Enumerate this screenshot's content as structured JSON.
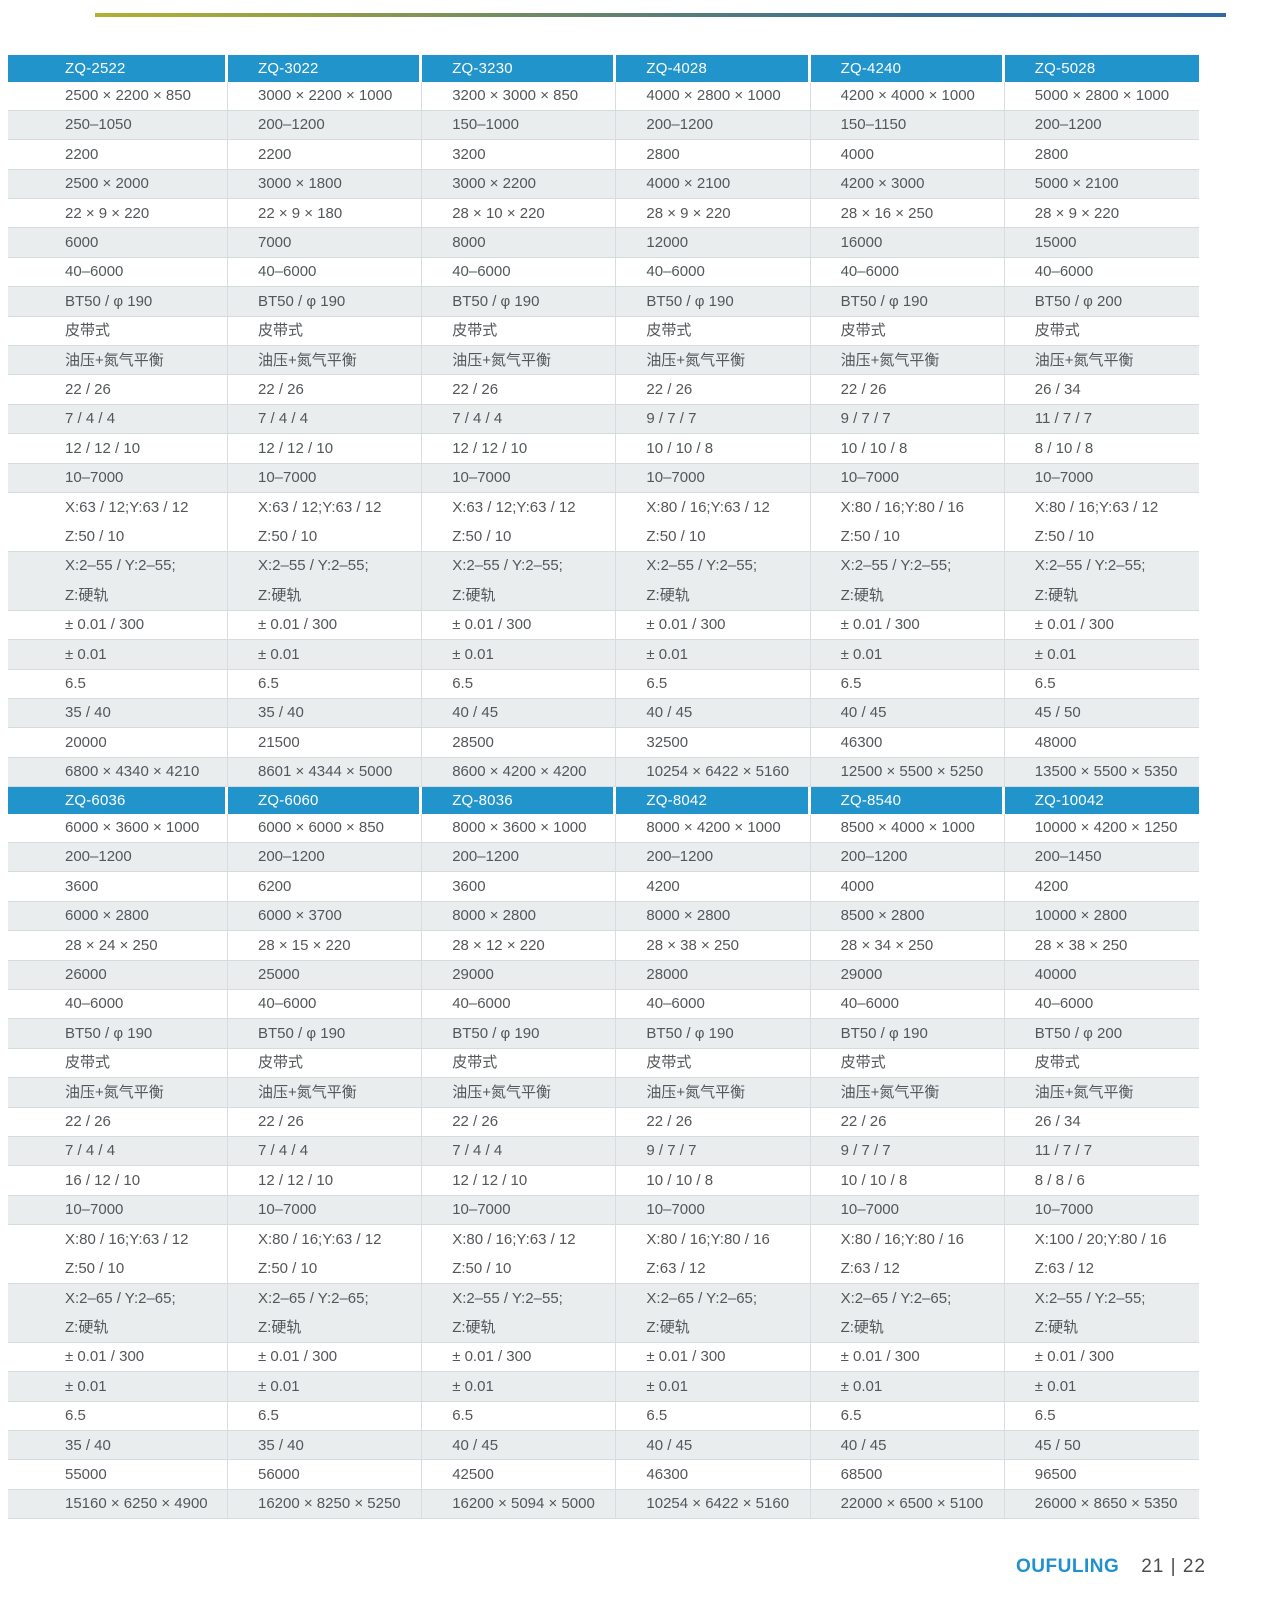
{
  "footer": {
    "brand": "OUFULING",
    "pages": "21 | 22"
  },
  "table": {
    "sections": [
      {
        "columns": [
          {
            "model": "ZQ-2522",
            "values": [
              "2500 × 2200 × 850",
              "250–1050",
              "2200",
              "2500 × 2000",
              "22 × 9 × 220",
              "6000",
              "40–6000",
              "BT50 / φ 190",
              "皮带式",
              "油压+氮气平衡",
              "22 / 26",
              "7 / 4 / 4",
              "12 / 12 / 10",
              "10–7000",
              "X:63 / 12;Y:63 / 12\nZ:50 / 10",
              "X:2–55 / Y:2–55;\nZ:硬轨",
              "± 0.01 / 300",
              "± 0.01",
              "6.5",
              "35 / 40",
              "20000",
              "6800 × 4340 × 4210"
            ]
          },
          {
            "model": "ZQ-3022",
            "values": [
              "3000 × 2200 × 1000",
              "200–1200",
              "2200",
              "3000 × 1800",
              "22 × 9 × 180",
              "7000",
              "40–6000",
              "BT50 / φ 190",
              "皮带式",
              "油压+氮气平衡",
              "22 / 26",
              "7 / 4 / 4",
              "12 / 12 / 10",
              "10–7000",
              "X:63 / 12;Y:63 / 12\nZ:50 / 10",
              "X:2–55 / Y:2–55;\nZ:硬轨",
              "± 0.01 / 300",
              "± 0.01",
              "6.5",
              "35 / 40",
              "21500",
              "8601 × 4344 × 5000"
            ]
          },
          {
            "model": "ZQ-3230",
            "values": [
              "3200 × 3000 × 850",
              "150–1000",
              "3200",
              "3000 × 2200",
              "28 × 10 × 220",
              "8000",
              "40–6000",
              "BT50 / φ 190",
              "皮带式",
              "油压+氮气平衡",
              "22 / 26",
              "7 / 4 / 4",
              "12 / 12 / 10",
              "10–7000",
              "X:63 / 12;Y:63 / 12\nZ:50 / 10",
              "X:2–55 / Y:2–55;\nZ:硬轨",
              "± 0.01 / 300",
              "± 0.01",
              "6.5",
              "40 / 45",
              "28500",
              "8600 × 4200 × 4200"
            ]
          },
          {
            "model": "ZQ-4028",
            "values": [
              "4000 × 2800 × 1000",
              "200–1200",
              "2800",
              "4000 × 2100",
              "28 × 9 × 220",
              "12000",
              "40–6000",
              "BT50 / φ 190",
              "皮带式",
              "油压+氮气平衡",
              "22 / 26",
              "9 / 7 / 7",
              "10 / 10 / 8",
              "10–7000",
              "X:80 / 16;Y:63 / 12\nZ:50 / 10",
              "X:2–55 / Y:2–55;\nZ:硬轨",
              "± 0.01 / 300",
              "± 0.01",
              "6.5",
              "40 / 45",
              "32500",
              "10254 × 6422 × 5160"
            ]
          },
          {
            "model": "ZQ-4240",
            "values": [
              "4200 × 4000 × 1000",
              "150–1150",
              "4000",
              "4200 × 3000",
              "28 × 16 × 250",
              "16000",
              "40–6000",
              "BT50 / φ 190",
              "皮带式",
              "油压+氮气平衡",
              "22 / 26",
              "9 / 7 / 7",
              "10 / 10 / 8",
              "10–7000",
              "X:80 / 16;Y:80 / 16\nZ:50 / 10",
              "X:2–55 / Y:2–55;\nZ:硬轨",
              "± 0.01 / 300",
              "± 0.01",
              "6.5",
              "40 / 45",
              "46300",
              "12500 × 5500 × 5250"
            ]
          },
          {
            "model": "ZQ-5028",
            "values": [
              "5000 × 2800 × 1000",
              "200–1200",
              "2800",
              "5000 × 2100",
              "28 × 9 × 220",
              "15000",
              "40–6000",
              "BT50 / φ 200",
              "皮带式",
              "油压+氮气平衡",
              "26 / 34",
              "11 / 7 / 7",
              "8 / 10 / 8",
              "10–7000",
              "X:80 / 16;Y:63 / 12\nZ:50 / 10",
              "X:2–55 / Y:2–55;\nZ:硬轨",
              "± 0.01 / 300",
              "± 0.01",
              "6.5",
              "45 / 50",
              "48000",
              "13500 × 5500 × 5350"
            ]
          }
        ]
      },
      {
        "columns": [
          {
            "model": "ZQ-6036",
            "values": [
              "6000 × 3600 × 1000",
              "200–1200",
              "3600",
              "6000 × 2800",
              "28 × 24 × 250",
              "26000",
              "40–6000",
              "BT50 / φ 190",
              "皮带式",
              "油压+氮气平衡",
              "22 / 26",
              "7 / 4 / 4",
              "16 / 12 / 10",
              "10–7000",
              "X:80 / 16;Y:63 / 12\nZ:50 / 10",
              "X:2–65 / Y:2–65;\nZ:硬轨",
              "± 0.01 / 300",
              "± 0.01",
              "6.5",
              "35 / 40",
              "55000",
              "15160 × 6250 × 4900"
            ]
          },
          {
            "model": "ZQ-6060",
            "values": [
              "6000 × 6000 × 850",
              "200–1200",
              "6200",
              "6000 × 3700",
              "28 × 15 × 220",
              "25000",
              "40–6000",
              "BT50 / φ 190",
              "皮带式",
              "油压+氮气平衡",
              "22 / 26",
              "7 / 4 / 4",
              "12 / 12 / 10",
              "10–7000",
              "X:80 / 16;Y:63 / 12\nZ:50 / 10",
              "X:2–65 / Y:2–65;\nZ:硬轨",
              "± 0.01 / 300",
              "± 0.01",
              "6.5",
              "35 / 40",
              "56000",
              "16200 × 8250 × 5250"
            ]
          },
          {
            "model": "ZQ-8036",
            "values": [
              "8000 × 3600 × 1000",
              "200–1200",
              "3600",
              "8000 × 2800",
              "28 × 12 × 220",
              "29000",
              "40–6000",
              "BT50 / φ 190",
              "皮带式",
              "油压+氮气平衡",
              "22 / 26",
              "7 / 4 / 4",
              "12 / 12 / 10",
              "10–7000",
              "X:80 / 16;Y:63 / 12\nZ:50 / 10",
              "X:2–55 / Y:2–55;\nZ:硬轨",
              "± 0.01 / 300",
              "± 0.01",
              "6.5",
              "40 / 45",
              "42500",
              "16200 × 5094 × 5000"
            ]
          },
          {
            "model": "ZQ-8042",
            "values": [
              "8000 × 4200 × 1000",
              "200–1200",
              "4200",
              "8000 × 2800",
              "28 × 38 × 250",
              "28000",
              "40–6000",
              "BT50 / φ 190",
              "皮带式",
              "油压+氮气平衡",
              "22 / 26",
              "9 / 7 / 7",
              "10 / 10 / 8",
              "10–7000",
              "X:80 / 16;Y:80 / 16\nZ:63 / 12",
              "X:2–65 / Y:2–65;\nZ:硬轨",
              "± 0.01 / 300",
              "± 0.01",
              "6.5",
              "40 / 45",
              "46300",
              "10254 × 6422 × 5160"
            ]
          },
          {
            "model": "ZQ-8540",
            "values": [
              "8500 × 4000 × 1000",
              "200–1200",
              "4000",
              "8500 × 2800",
              "28 × 34 × 250",
              "29000",
              "40–6000",
              "BT50 / φ 190",
              "皮带式",
              "油压+氮气平衡",
              "22 / 26",
              "9 / 7 / 7",
              "10 / 10 / 8",
              "10–7000",
              "X:80 / 16;Y:80 / 16\nZ:63 / 12",
              "X:2–65 / Y:2–65;\nZ:硬轨",
              "± 0.01 / 300",
              "± 0.01",
              "6.5",
              "40 / 45",
              "68500",
              "22000 × 6500 × 5100"
            ]
          },
          {
            "model": "ZQ-10042",
            "values": [
              "10000 × 4200 × 1250",
              "200–1450",
              "4200",
              "10000 × 2800",
              "28 × 38 × 250",
              "40000",
              "40–6000",
              "BT50 / φ 200",
              "皮带式",
              "油压+氮气平衡",
              "26 / 34",
              "11 / 7 / 7",
              "8 / 8 / 6",
              "10–7000",
              "X:100 / 20;Y:80 / 16\nZ:63 / 12",
              "X:2–55 / Y:2–55;\nZ:硬轨",
              "± 0.01 / 300",
              "± 0.01",
              "6.5",
              "45 / 50",
              "96500",
              "26000 × 8650 × 5350"
            ]
          }
        ]
      }
    ]
  }
}
